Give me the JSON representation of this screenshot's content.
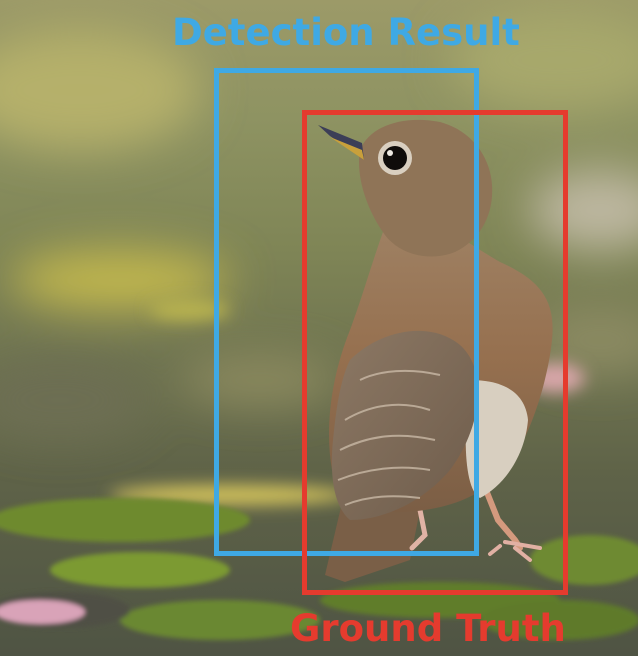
{
  "image": {
    "subject_icon": "thrush-bird-icon"
  },
  "boxes": {
    "detection": {
      "label": "Detection Result",
      "color": "#3fa9e4"
    },
    "ground_truth": {
      "label": "Ground Truth",
      "color": "#e53b2e"
    }
  }
}
